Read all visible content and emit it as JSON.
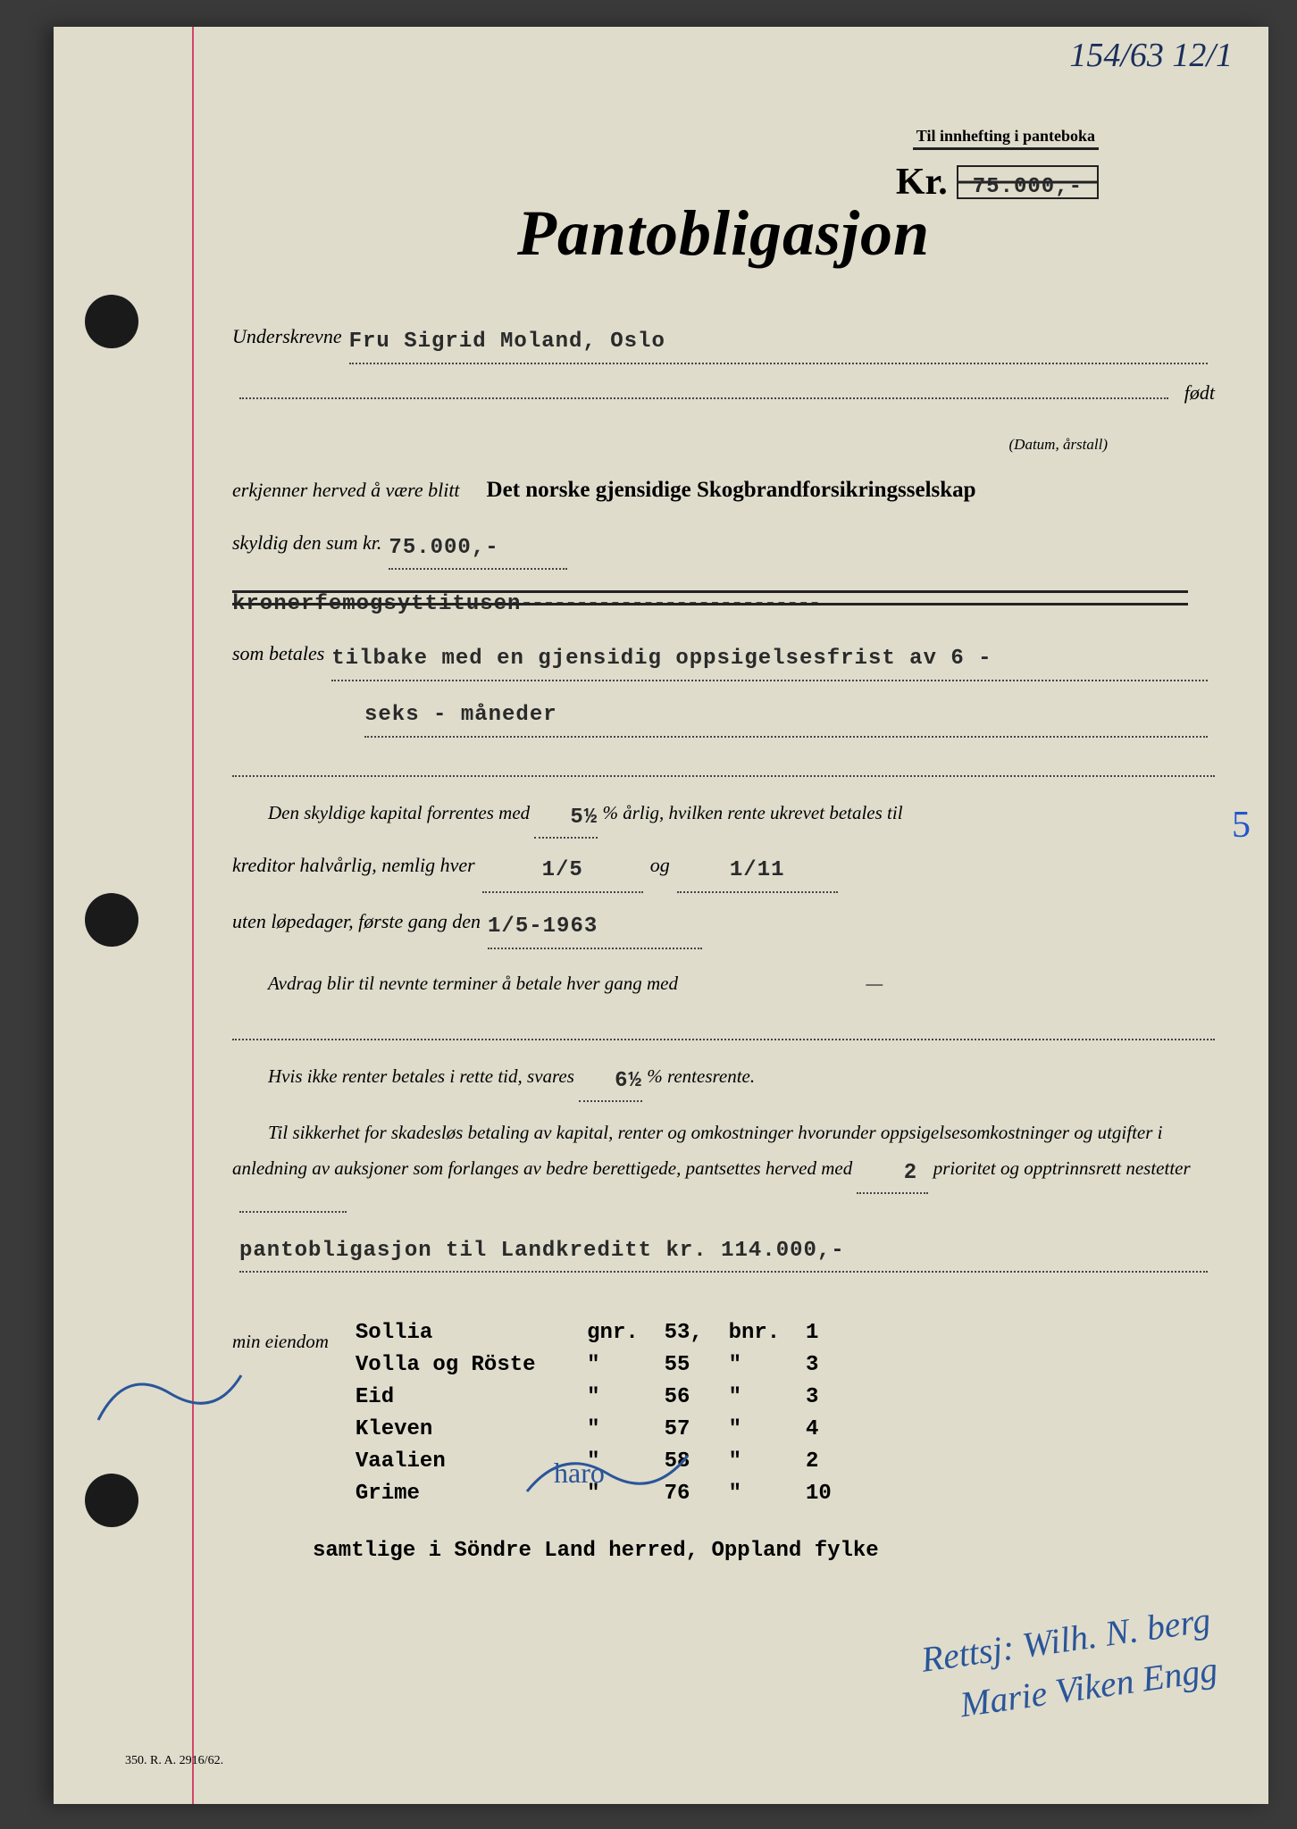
{
  "handwritten_ref": "154/63 12/1",
  "header_label": "Til innhefting i panteboka",
  "kr_label": "Kr.",
  "kr_amount": "75.000,-",
  "title": "Pantobligasjon",
  "underskrevne_label": "Underskrevne",
  "underskrevne_value": "Fru Sigrid Moland, Oslo",
  "fodt_label": "født",
  "fodt_hint": "(Datum, årstall)",
  "erkjenner_text": "erkjenner herved å være blitt",
  "company": "Det norske gjensidige Skogbrandforsikringsselskap",
  "skyldig_label": "skyldig den sum kr.",
  "skyldig_value": "75.000,-",
  "amount_words": "kronerfemogsyttitusen",
  "dashes": "----------------------------",
  "som_betales_label": "som betales",
  "som_betales_value": "tilbake med en gjensidig oppsigelsesfrist av 6 -",
  "som_betales_value2": "seks - måneder",
  "interest_line1_a": "Den skyldige kapital forrentes med",
  "interest_rate": "5½",
  "interest_line1_b": "% årlig, hvilken rente ukrevet betales til",
  "interest_line2_a": "kreditor halvårlig, nemlig hver",
  "date1": "1/5",
  "og_label": "og",
  "date2": "1/11",
  "interest_line3_a": "uten løpedager, første gang den",
  "first_date": "1/5-1963",
  "avdrag_text": "Avdrag blir til nevnte terminer å betale hver gang med",
  "avdrag_dash": "—",
  "hvis_text_a": "Hvis ikke renter betales i rette tid, svares",
  "penalty_rate": "6½",
  "hvis_text_b": "% rentesrente.",
  "sikkerhet_text": "Til sikkerhet for skadesløs betaling av kapital, renter og omkostninger hvorunder oppsigelsesomkostninger og utgifter i anledning av auksjoner som forlanges av bedre berettigede, pantsettes herved med",
  "priority": "2",
  "prioritet_text": "prioritet og opptrinnsrett nestetter",
  "nestetter_value": "pantobligasjon til Landkreditt kr. 114.000,-",
  "min_eiendom_label": "min eiendom",
  "properties": [
    {
      "name": "Sollia",
      "gnr_label": "gnr.",
      "gnr": "53,",
      "bnr_label": "bnr.",
      "bnr": "1"
    },
    {
      "name": "Volla og Röste",
      "gnr_label": "\"",
      "gnr": "55",
      "bnr_label": "\"",
      "bnr": "3"
    },
    {
      "name": "Eid",
      "gnr_label": "\"",
      "gnr": "56",
      "bnr_label": "\"",
      "bnr": "3"
    },
    {
      "name": "Kleven",
      "gnr_label": "\"",
      "gnr": "57",
      "bnr_label": "\"",
      "bnr": "4"
    },
    {
      "name": "Vaalien",
      "gnr_label": "\"",
      "gnr": "58",
      "bnr_label": "\"",
      "bnr": "2"
    },
    {
      "name": "Grime",
      "gnr_label": "\"",
      "gnr": "76",
      "bnr_label": "\"",
      "bnr": "10"
    }
  ],
  "location": "samtlige i Söndre Land herred, Oppland fylke",
  "side_mark": "5",
  "signature1": "Rettsj: Wilh. N. berg",
  "signature2": "Marie Viken Engg",
  "pen_note": "haro",
  "footer_code": "350. R. A. 2916/62.",
  "colors": {
    "paper": "#dfdccc",
    "ink": "#222222",
    "typed": "#2a2a2a",
    "red_margin": "#d4456a",
    "blue_pen": "#2a5599",
    "blue_ink": "#1a2f5a",
    "background": "#3a3a3a"
  }
}
